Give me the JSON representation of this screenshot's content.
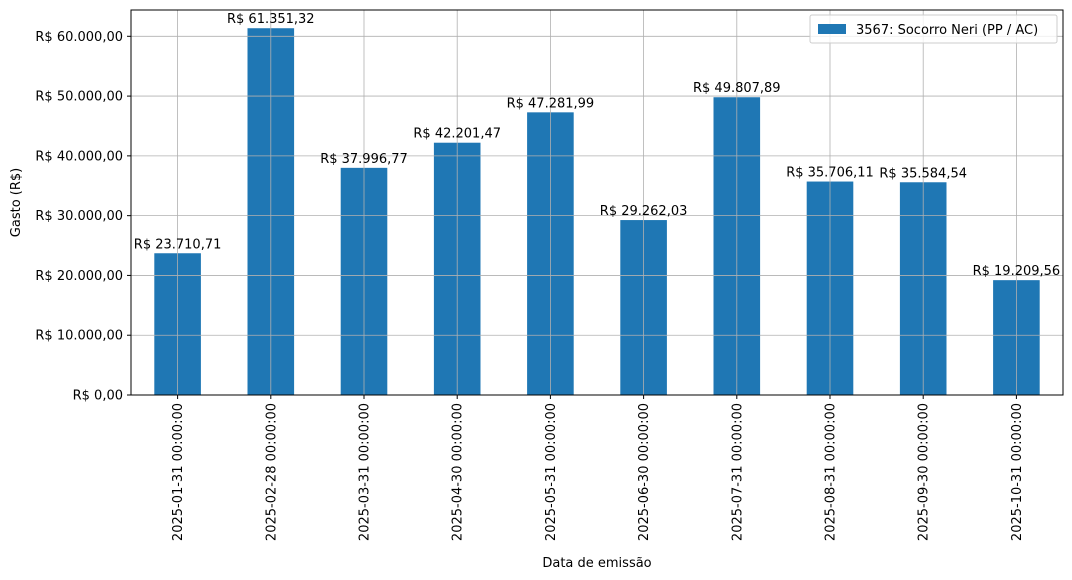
{
  "chart_data": {
    "type": "bar",
    "title": "",
    "xlabel": "Data de emissão",
    "ylabel": "Gasto (R$)",
    "ylim": [
      0,
      64400
    ],
    "grid": true,
    "legend_position": "top-right",
    "color": "#1f77b4",
    "categories": [
      "2025-01-31 00:00:00",
      "2025-02-28 00:00:00",
      "2025-03-31 00:00:00",
      "2025-04-30 00:00:00",
      "2025-05-31 00:00:00",
      "2025-06-30 00:00:00",
      "2025-07-31 00:00:00",
      "2025-08-31 00:00:00",
      "2025-09-30 00:00:00",
      "2025-10-31 00:00:00"
    ],
    "series": [
      {
        "name": "3567: Socorro Neri (PP / AC)",
        "values": [
          23710.71,
          61351.32,
          37996.77,
          42201.47,
          47281.99,
          29262.03,
          49807.89,
          35706.11,
          35584.54,
          19209.56
        ],
        "labels": [
          "R$ 23.710,71",
          "R$ 61.351,32",
          "R$ 37.996,77",
          "R$ 42.201,47",
          "R$ 47.281,99",
          "R$ 29.262,03",
          "R$ 49.807,89",
          "R$ 35.706,11",
          "R$ 35.584,54",
          "R$ 19.209,56"
        ]
      }
    ],
    "yticks": [
      0,
      10000,
      20000,
      30000,
      40000,
      50000,
      60000
    ],
    "ytick_labels": [
      "R$ 0,00",
      "R$ 10.000,00",
      "R$ 20.000,00",
      "R$ 30.000,00",
      "R$ 40.000,00",
      "R$ 50.000,00",
      "R$ 60.000,00"
    ]
  }
}
